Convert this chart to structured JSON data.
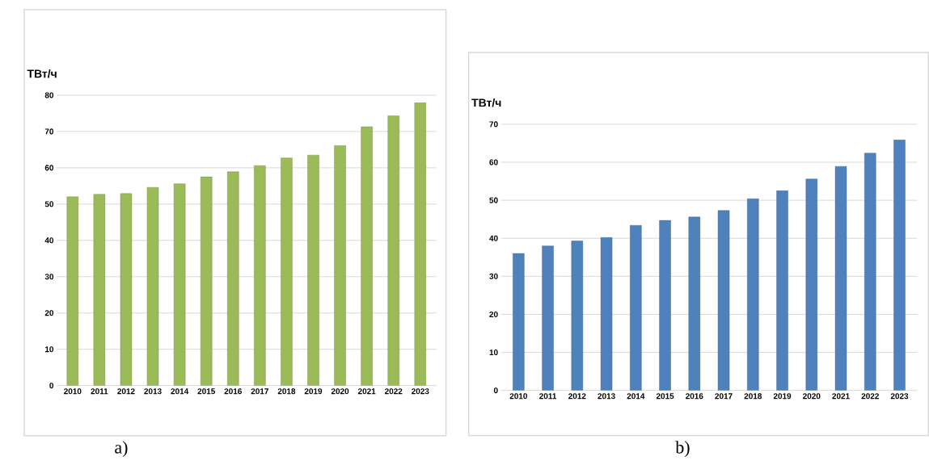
{
  "chart_data": [
    {
      "type": "bar",
      "ylabel": "ТВт/ч",
      "categories": [
        "2010",
        "2011",
        "2012",
        "2013",
        "2014",
        "2015",
        "2016",
        "2017",
        "2018",
        "2019",
        "2020",
        "2021",
        "2022",
        "2023"
      ],
      "values": [
        52,
        52.7,
        52.9,
        54.6,
        55.6,
        57.5,
        58.9,
        60.6,
        62.7,
        63.5,
        66.1,
        71.3,
        74.3,
        77.9
      ],
      "color": "#9bbb59",
      "ylim": [
        0,
        80
      ],
      "yticks": [
        0,
        10,
        20,
        30,
        40,
        50,
        60,
        70,
        80
      ],
      "grid": "y",
      "annotations": [
        "a)"
      ]
    },
    {
      "type": "bar",
      "ylabel": "ТВт/ч",
      "categories": [
        "2010",
        "2011",
        "2012",
        "2013",
        "2014",
        "2015",
        "2016",
        "2017",
        "2018",
        "2019",
        "2020",
        "2021",
        "2022",
        "2023"
      ],
      "values": [
        36,
        38,
        39.3,
        40.2,
        43.4,
        44.7,
        45.6,
        47.3,
        50.4,
        52.5,
        55.6,
        58.9,
        62.4,
        65.9
      ],
      "color": "#4f81bd",
      "ylim": [
        0,
        70
      ],
      "yticks": [
        0,
        10,
        20,
        30,
        40,
        50,
        60,
        70
      ],
      "grid": "y",
      "annotations": [
        "b)"
      ]
    }
  ]
}
